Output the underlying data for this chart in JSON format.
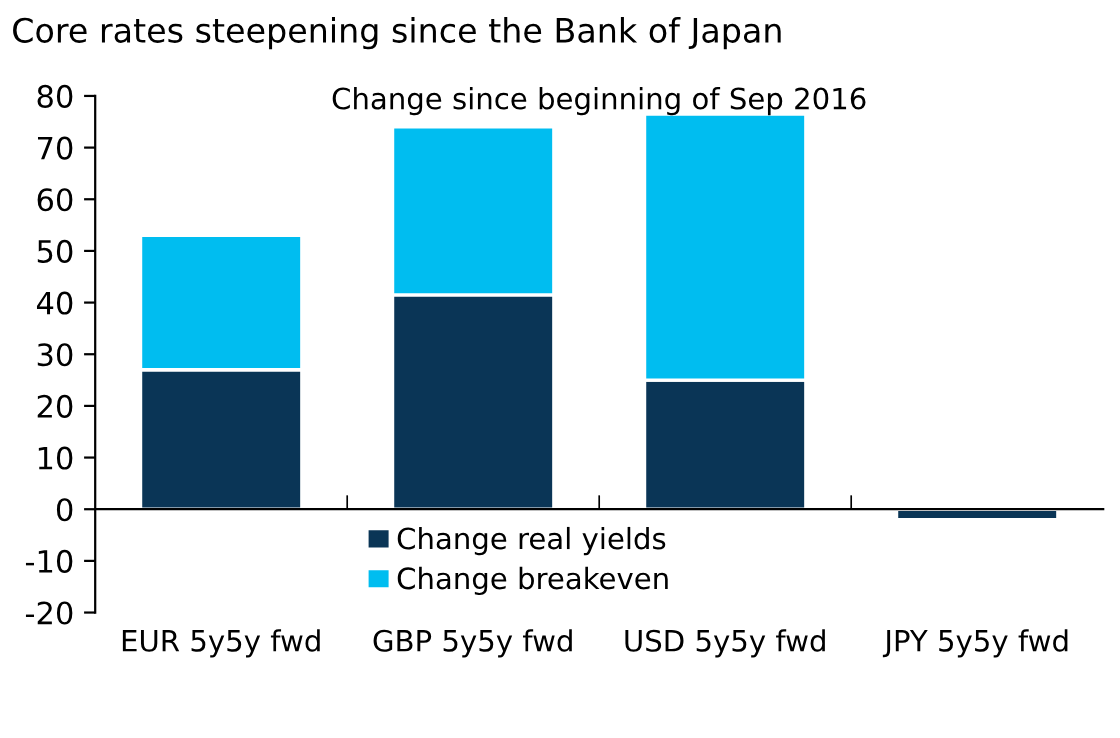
{
  "chart_data": {
    "type": "bar",
    "title": "Core rates steepening since the Bank of Japan",
    "subtitle": "Change since beginning of Sep 2016",
    "categories": [
      "EUR 5y5y fwd",
      "GBP 5y5y fwd",
      "USD 5y5y fwd",
      "JPY 5y5y fwd"
    ],
    "stacked": true,
    "series": [
      {
        "name": "Change real yields",
        "color": "#0a3556",
        "values": [
          27,
          41.5,
          25,
          -2
        ]
      },
      {
        "name": "Change breakeven",
        "color": "#00bdf0",
        "values": [
          26,
          32.5,
          51.5,
          null
        ]
      }
    ],
    "ylim": [
      -20,
      80
    ],
    "yticks": [
      -20,
      -10,
      0,
      10,
      20,
      30,
      40,
      50,
      60,
      70,
      80
    ],
    "legend": "bottom"
  }
}
